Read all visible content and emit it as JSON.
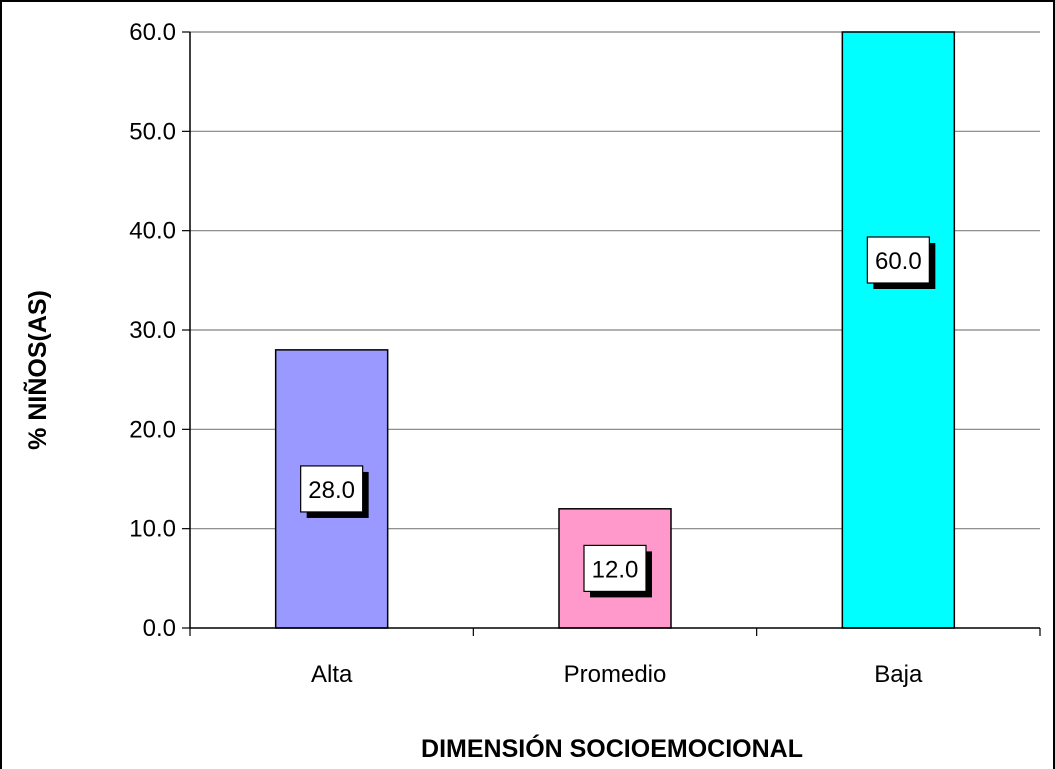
{
  "chart_data": {
    "type": "bar",
    "categories": [
      "Alta",
      "Promedio",
      "Baja"
    ],
    "values": [
      28.0,
      12.0,
      60.0
    ],
    "data_labels": [
      "28.0",
      "12.0",
      "60.0"
    ],
    "bar_colors": [
      "#9999ff",
      "#ff99cc",
      "#00ffff"
    ],
    "xlabel": "DIMENSIÓN SOCIOEMOCIONAL",
    "ylabel": "% NIÑOS(AS)",
    "ylim": [
      0,
      60
    ],
    "yticks": [
      "0.0",
      "10.0",
      "20.0",
      "30.0",
      "40.0",
      "50.0",
      "60.0"
    ],
    "grid": true,
    "legend": "none"
  }
}
